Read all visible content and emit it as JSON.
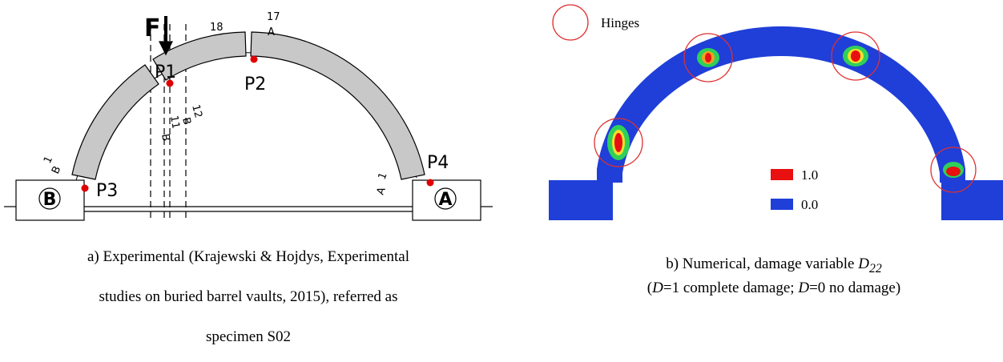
{
  "panel_a": {
    "load": "F",
    "points": [
      "P1",
      "P2",
      "P3",
      "P4"
    ],
    "supports": [
      "B",
      "A"
    ],
    "block_marks": [
      "18",
      "17",
      "A",
      "12",
      "B",
      "11",
      "B",
      "1",
      "B",
      "1",
      "A"
    ],
    "caption": [
      "a) Experimental (Krajewski & Hojdys, Experimental",
      "studies on buried barrel vaults, 2015), referred as",
      "specimen S02"
    ]
  },
  "panel_b": {
    "hinges_label": "Hinges",
    "legend": [
      "1.0",
      "0.0"
    ],
    "caption_line1": [
      "b) Numerical, damage variable ",
      "D",
      "22"
    ],
    "caption_line2": [
      "(",
      "D",
      "=1 complete damage; ",
      "D",
      "=0 no damage)"
    ]
  }
}
